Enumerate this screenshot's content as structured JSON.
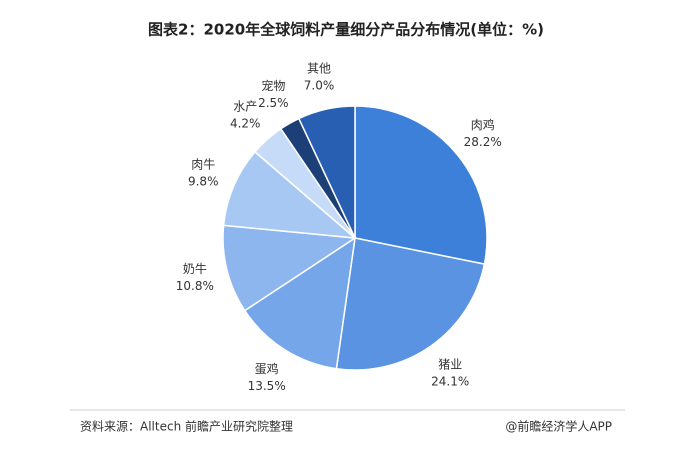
{
  "chart_data": {
    "type": "pie",
    "title": "图表2：2020年全球饲料产量细分产品分布情况(单位：%)",
    "categories": [
      "肉鸡",
      "猪业",
      "蛋鸡",
      "奶牛",
      "肉牛",
      "水产",
      "宠物",
      "其他"
    ],
    "values": [
      28.2,
      24.1,
      13.5,
      10.8,
      9.8,
      4.2,
      2.5,
      7.0
    ],
    "value_labels": [
      "28.2%",
      "24.1%",
      "13.5%",
      "10.8%",
      "9.8%",
      "4.2%",
      "2.5%",
      "7.0%"
    ],
    "colors": [
      "#3d80da",
      "#5a93e2",
      "#76a6ea",
      "#8db6ef",
      "#a8c8f4",
      "#c6dbf8",
      "#1d3f78",
      "#285fb3"
    ],
    "source": "资料来源：Alltech 前瞻产业研究院整理",
    "credit": "@前瞻经济学人APP"
  }
}
